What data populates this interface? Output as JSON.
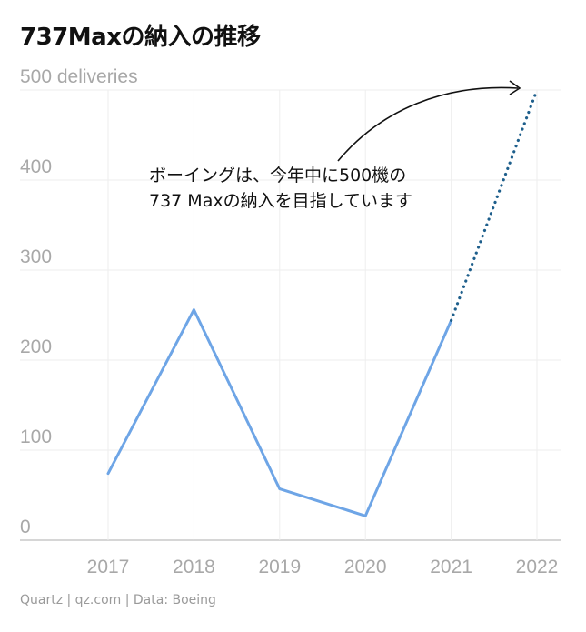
{
  "chart_data": {
    "type": "line",
    "title": "737Maxの納入の推移",
    "ylabel": "deliveries",
    "ylim": [
      0,
      500
    ],
    "yticks": [
      0,
      100,
      200,
      300,
      400,
      500
    ],
    "ytick_labels": [
      "0",
      "100",
      "200",
      "300",
      "400",
      "500 deliveries"
    ],
    "categories": [
      "2017",
      "2018",
      "2019",
      "2020",
      "2021",
      "2022"
    ],
    "series": [
      {
        "values": [
          74,
          256,
          57,
          27,
          244,
          null
        ],
        "color": "#6ea5e6",
        "style": "solid"
      },
      {
        "values": [
          null,
          null,
          null,
          null,
          244,
          500
        ],
        "color": "#1e5f8c",
        "style": "dotted"
      }
    ],
    "annotation": {
      "lines": [
        "ボーイングは、今年中に500機の",
        "737 Maxの納入を目指しています"
      ],
      "points_to": {
        "x": "2022",
        "y": 500
      }
    },
    "grid": true
  },
  "footer": "Quartz | qz.com | Data: Boeing"
}
